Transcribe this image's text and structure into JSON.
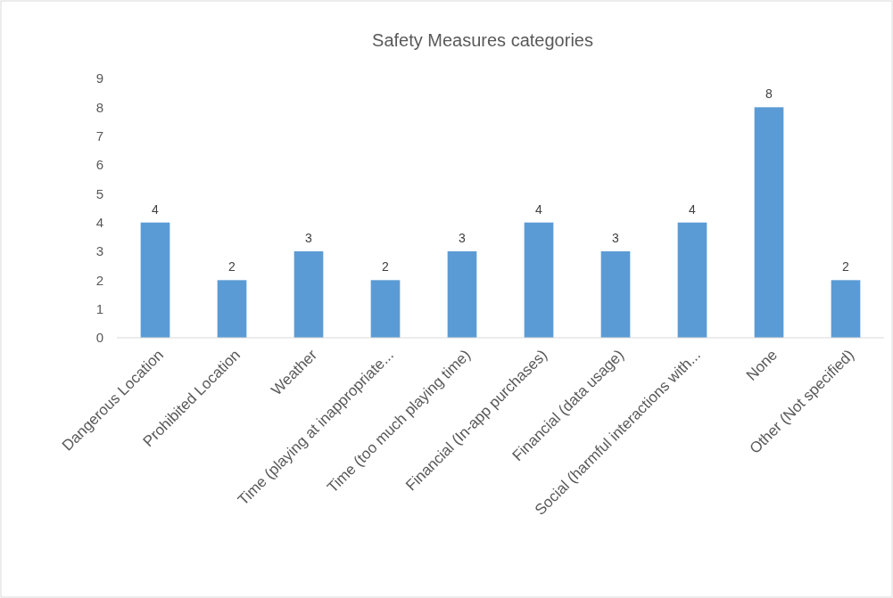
{
  "chart_data": {
    "type": "bar",
    "title": "Safety Measures categories",
    "categories": [
      "Dangerous Location",
      "Prohibited Location",
      "Weather",
      "Time (playing at inappropriate...",
      "Time (too much playing time)",
      "Financial (In-app purchases)",
      "Financial (data usage)",
      "Social (harmful interactions with...",
      "None",
      "Other (Not specified)"
    ],
    "values": [
      4,
      2,
      3,
      2,
      3,
      4,
      3,
      4,
      8,
      2
    ],
    "color": "#5b9bd5",
    "ylim": [
      0,
      9
    ],
    "yticks": [
      0,
      1,
      2,
      3,
      4,
      5,
      6,
      7,
      8,
      9
    ],
    "data_labels": true,
    "grid": false
  }
}
